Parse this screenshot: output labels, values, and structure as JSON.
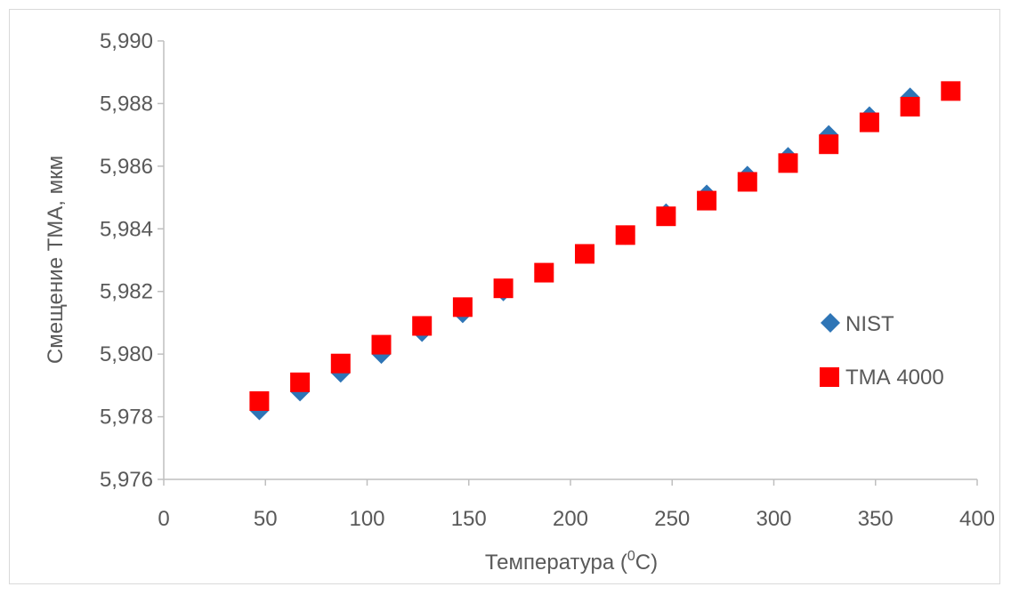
{
  "chart_data": {
    "type": "scatter",
    "title": "",
    "xlabel_main": "Температура (",
    "xlabel_sup": "0",
    "xlabel_tail": "C)",
    "ylabel": "Смещение ТМА, мкм",
    "xlim": [
      0,
      400
    ],
    "ylim": [
      5.976,
      5.99
    ],
    "x_ticks": [
      "0",
      "50",
      "100",
      "150",
      "200",
      "250",
      "300",
      "350",
      "400"
    ],
    "y_ticks": [
      "5,976",
      "5,978",
      "5,980",
      "5,982",
      "5,984",
      "5,986",
      "5,988",
      "5,990"
    ],
    "grid": false,
    "legend_position": "right",
    "series": [
      {
        "name": "NIST",
        "marker": "diamond",
        "color": "#2e75b6",
        "x": [
          47,
          67,
          87,
          107,
          127,
          147,
          167,
          187,
          207,
          227,
          247,
          267,
          287,
          307,
          327,
          347,
          367
        ],
        "y": [
          5.9782,
          5.9788,
          5.9794,
          5.98,
          5.9807,
          5.9813,
          5.982,
          5.9826,
          5.9832,
          5.9838,
          5.9845,
          5.9851,
          5.9857,
          5.9863,
          5.987,
          5.9876,
          5.9882
        ]
      },
      {
        "name": "ТМА 4000",
        "marker": "square",
        "color": "#ff0000",
        "x": [
          47,
          67,
          87,
          107,
          127,
          147,
          167,
          187,
          207,
          227,
          247,
          267,
          287,
          307,
          327,
          347,
          367,
          387
        ],
        "y": [
          5.9785,
          5.9791,
          5.9797,
          5.9803,
          5.9809,
          5.9815,
          5.9821,
          5.9826,
          5.9832,
          5.9838,
          5.9844,
          5.9849,
          5.9855,
          5.9861,
          5.9867,
          5.9874,
          5.9879,
          5.9884
        ]
      }
    ]
  }
}
